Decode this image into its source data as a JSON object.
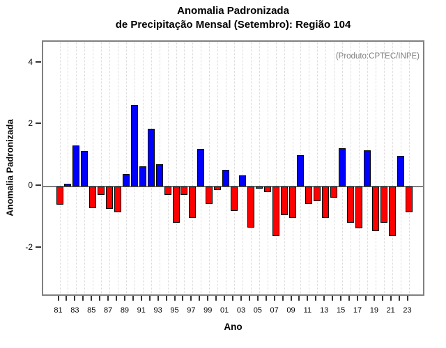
{
  "title": {
    "line1": "Anomalia Padronizada",
    "line2": "de Precipitação Mensal (Setembro): Região 104"
  },
  "annotation": "(Produto:CPTEC/INPE)",
  "colors": {
    "positive_bar": "#0000FF",
    "negative_bar": "#FF0000",
    "bar_border": "#000000",
    "plot_border": "#808080",
    "zero_line": "#808080",
    "gridline": "#d8d8d8",
    "annotation_text": "#7f7f7f"
  },
  "chart_data": {
    "type": "bar",
    "title": "Anomalia Padronizada de Precipitação Mensal (Setembro): Região 104",
    "xlabel": "Ano",
    "ylabel": "Anomalia Padronizada",
    "annotation": "(Produto:CPTEC/INPE)",
    "years": [
      1981,
      1982,
      1983,
      1984,
      1985,
      1986,
      1987,
      1988,
      1989,
      1990,
      1991,
      1992,
      1993,
      1994,
      1995,
      1996,
      1997,
      1998,
      1999,
      2000,
      2001,
      2002,
      2003,
      2004,
      2005,
      2006,
      2007,
      2008,
      2009,
      2010,
      2011,
      2012,
      2013,
      2014,
      2015,
      2016,
      2017,
      2018,
      2019,
      2020,
      2021,
      2022,
      2023
    ],
    "values": [
      -0.58,
      0.08,
      1.33,
      1.14,
      -0.7,
      -0.27,
      -0.73,
      -0.83,
      0.41,
      2.63,
      0.66,
      1.88,
      0.72,
      -0.28,
      -1.17,
      -0.26,
      -1.02,
      1.23,
      -0.56,
      -0.12,
      0.55,
      -0.8,
      0.35,
      -1.33,
      -0.06,
      -0.19,
      -1.6,
      -0.93,
      -1.01,
      1.01,
      -0.57,
      -0.48,
      -1.01,
      -0.37,
      1.25,
      -1.17,
      -1.36,
      1.17,
      -1.45,
      -1.18,
      -1.61,
      1.0,
      -0.84
    ],
    "x_tick_labels": [
      "81",
      "83",
      "85",
      "87",
      "89",
      "91",
      "93",
      "95",
      "97",
      "99",
      "01",
      "03",
      "05",
      "07",
      "09",
      "11",
      "13",
      "15",
      "17",
      "19",
      "21",
      "23"
    ],
    "y_ticks": [
      4,
      2,
      0,
      -2
    ],
    "ylim": [
      -3.6,
      4.7
    ],
    "grid": "vertical-dotted-every-year",
    "legend": "none",
    "positive_color": "#0000FF",
    "negative_color": "#FF0000"
  }
}
